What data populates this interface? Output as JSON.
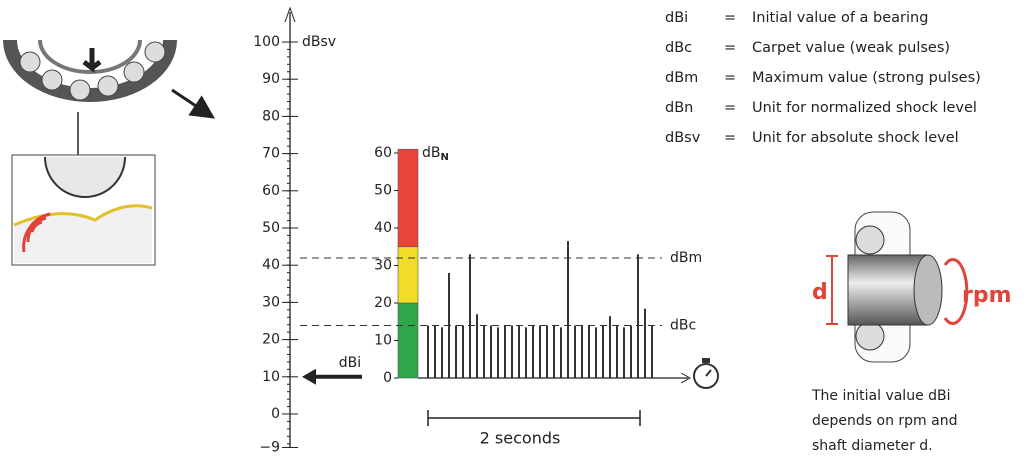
{
  "legend": [
    {
      "abbr": "dBi",
      "sign": "=",
      "text": "Initial value of a bearing"
    },
    {
      "abbr": "dBc",
      "sign": "=",
      "text": "Carpet value (weak pulses)"
    },
    {
      "abbr": "dBm",
      "sign": "=",
      "text": "Maximum value (strong pulses)"
    },
    {
      "abbr": "dBn",
      "sign": "=",
      "text": "Unit for normalized shock level"
    },
    {
      "abbr": "dBsv",
      "sign": "=",
      "text": "Unit for absolute shock level"
    }
  ],
  "dbsv_axis": {
    "unit": "dBsv",
    "lim": [
      -9,
      100
    ],
    "ticks": [
      {
        "value": -9,
        "label": "−9"
      },
      0,
      10,
      20,
      30,
      40,
      50,
      60,
      70,
      80,
      90,
      100
    ]
  },
  "dbn_axis": {
    "unit": "dB",
    "unit_sub": "N",
    "lim": [
      0,
      61
    ],
    "ticks": [
      0,
      10,
      20,
      30,
      40,
      50,
      60
    ],
    "zones": [
      {
        "from": 0,
        "to": 20,
        "color": "#2ea84a"
      },
      {
        "from": 20,
        "to": 35,
        "color": "#f2dc2a"
      },
      {
        "from": 35,
        "to": 61,
        "color": "#e8463a"
      }
    ]
  },
  "reference_lines": [
    {
      "label": "dBm",
      "value": 32
    },
    {
      "label": "dBc",
      "value": 14
    }
  ],
  "dbi": {
    "label": "dBi",
    "value": 10
  },
  "pulses": [
    14,
    14,
    13.5,
    28,
    14,
    14,
    33,
    17,
    14,
    14,
    13.5,
    14,
    14,
    14,
    13.5,
    14,
    14,
    14,
    14,
    13.5,
    36.5,
    14,
    14,
    14,
    13.5,
    14,
    16.5,
    14,
    13.5,
    14,
    33,
    18.5,
    14
  ],
  "time_span": {
    "label": "2 seconds"
  },
  "shaft": {
    "d_label": "d",
    "rpm_label": "rpm"
  },
  "caption": [
    "The initial value dBi",
    "depends on rpm and",
    "shaft diameter d."
  ]
}
